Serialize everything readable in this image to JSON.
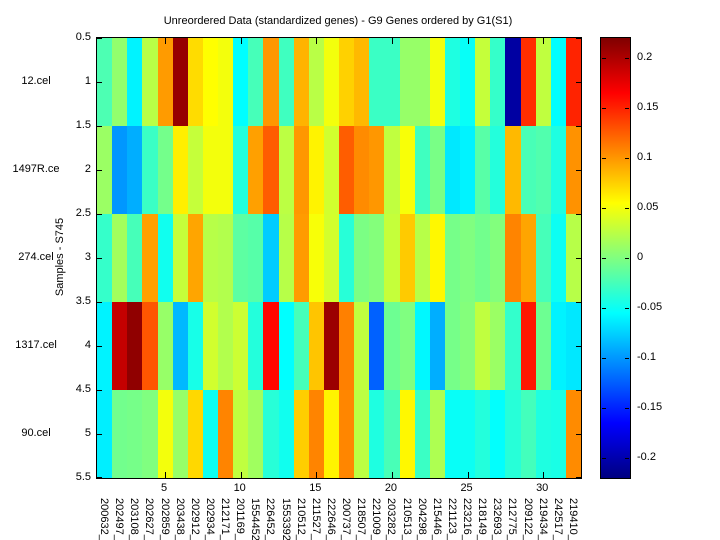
{
  "figure": {
    "background": "#FFFFFF"
  },
  "chart_data": {
    "type": "heatmap",
    "title": "Unreordered Data (standardized genes) - G9 Genes ordered by G1(S1)",
    "ylabel": "Samples - S745",
    "colormap": "jet",
    "value_range": [
      -0.22,
      0.22
    ],
    "grid": false,
    "x_axis_range": [
      0.5,
      32.5
    ],
    "y_axis_range": [
      0.5,
      5.5
    ],
    "x_ticks": [
      5,
      10,
      15,
      20,
      25,
      30
    ],
    "y_ticks": [
      "0.5",
      "1",
      "1.5",
      "2",
      "2.5",
      "3",
      "3.5",
      "4",
      "4.5",
      "5",
      "5.5"
    ],
    "row_labels": [
      "12.cel",
      "1497R.ce",
      "274.cel",
      "1317.cel",
      "90.cel"
    ],
    "column_labels": [
      "200632_",
      "202497_",
      "203108_",
      "202627_",
      "202859_",
      "203438_",
      "202912_",
      "202934_",
      "212171_",
      "201169_",
      "1554452_",
      "226452_",
      "1553392_",
      "210512_",
      "211527_",
      "222646_",
      "200737_",
      "218507_",
      "221009_",
      "203282_",
      "210513_",
      "204298_",
      "215446_",
      "221123_",
      "223216_",
      "218149_",
      "232693_",
      "212775_",
      "209122_",
      "219434_",
      "242517_",
      "219410_"
    ],
    "matrix": [
      [
        -0.022,
        0.008,
        -0.06,
        0.025,
        0.098,
        0.21,
        0.07,
        0.055,
        0.05,
        -0.055,
        -0.025,
        0.1,
        -0.028,
        0.088,
        0.025,
        0.05,
        0.075,
        0.085,
        -0.03,
        -0.03,
        0.01,
        0.01,
        0.05,
        -0.042,
        -0.052,
        0.03,
        -0.032,
        -0.205,
        0.145,
        0.028,
        -0.055,
        0.15
      ],
      [
        0.012,
        -0.1,
        -0.09,
        -0.03,
        -0.005,
        0.062,
        0.03,
        0.05,
        0.05,
        -0.04,
        0.096,
        0.125,
        0.026,
        0.1,
        0.06,
        0.035,
        0.125,
        0.105,
        0.1,
        0.028,
        0.052,
        -0.028,
        -0.003,
        -0.065,
        -0.06,
        -0.017,
        -0.04,
        0.085,
        -0.024,
        -0.02,
        -0.042,
        0.102
      ],
      [
        -0.032,
        0.015,
        -0.025,
        0.096,
        -0.048,
        0.03,
        0.094,
        0.024,
        0.022,
        -0.015,
        -0.018,
        -0.077,
        0.024,
        0.098,
        0.052,
        0.036,
        -0.038,
        -0.002,
        0.002,
        0.03,
        0.078,
        0.024,
        0.058,
        -0.004,
        0.0,
        -0.006,
        0.001,
        0.108,
        0.094,
        -0.025,
        -0.05,
        0.024
      ],
      [
        -0.06,
        0.19,
        0.213,
        0.128,
        0.01,
        -0.085,
        -0.045,
        0.035,
        0.022,
        0.033,
        -0.04,
        0.163,
        -0.055,
        -0.025,
        0.08,
        0.208,
        0.11,
        0.028,
        -0.123,
        -0.008,
        0.0,
        -0.058,
        -0.09,
        -0.004,
        0.002,
        0.028,
        0.012,
        -0.033,
        0.155,
        -0.008,
        -0.06,
        -0.065
      ],
      [
        -0.062,
        -0.006,
        -0.004,
        0.0,
        0.05,
        0.01,
        0.072,
        -0.05,
        0.108,
        0.028,
        0.014,
        -0.038,
        -0.048,
        0.076,
        0.108,
        0.06,
        0.107,
        0.026,
        -0.042,
        -0.024,
        0.058,
        -0.03,
        0.02,
        -0.052,
        -0.05,
        -0.04,
        -0.054,
        -0.038,
        -0.026,
        -0.042,
        -0.044,
        0.105
      ]
    ],
    "colorbar": {
      "position": "right",
      "tick_labels": [
        "0.2",
        "0.15",
        "0.1",
        "0.05",
        "0",
        "-0.05",
        "-0.1",
        "-0.15",
        "-0.2"
      ]
    }
  }
}
